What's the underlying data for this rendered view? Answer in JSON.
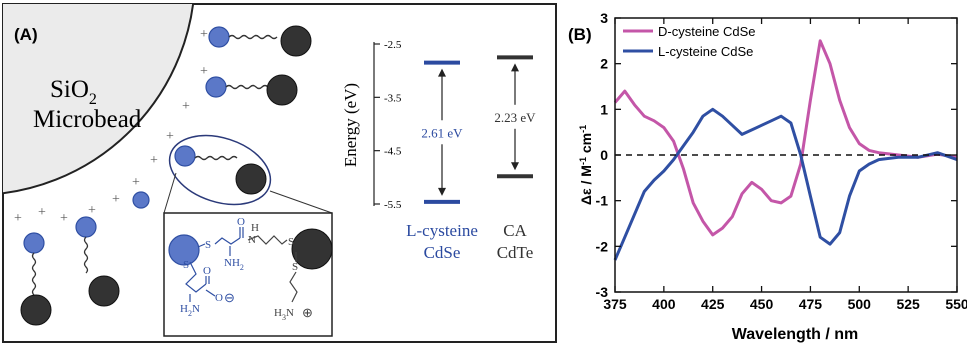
{
  "panel_a": {
    "label": "(A)",
    "bead_line1": "SiO",
    "bead_sub": "2",
    "bead_line2": "Microbead",
    "energy_axis": {
      "label": "Energy (eV)",
      "ticks": [
        "-2.5",
        "-3.5",
        "-4.5",
        "-5.5"
      ],
      "range": [
        -2.5,
        -5.5
      ]
    },
    "levels": [
      {
        "name_line1": "L-cysteine",
        "name_line2": "CdSe",
        "upper": -2.85,
        "lower": -5.46,
        "gap": "2.61 eV",
        "color": "#2b4aa0"
      },
      {
        "name_line1": "CA",
        "name_line2": "CdTe",
        "upper": -2.75,
        "lower": -4.98,
        "gap": "2.23 eV",
        "color": "#333333"
      }
    ],
    "structure": {
      "S1": "S",
      "S2": "S",
      "S3": "S",
      "NH": "H",
      "N": "N",
      "O1": "O",
      "NH2a": "NH",
      "NH2a_sub": "2",
      "H2N": "H",
      "H2N_sub": "2",
      "H2N_N": "N",
      "O2": "O",
      "O3": "O",
      "minus": "⊖",
      "H3N": "H",
      "H3N_sub": "3",
      "H3N_N": "N",
      "plus": "⊕"
    },
    "colors": {
      "blue_dot": "#5b78c8",
      "dark_dot": "#333333",
      "blue_text": "#2b4aa0",
      "bead_fill": "#ebebeb"
    }
  },
  "panel_b": {
    "label": "(B)",
    "chart_data": {
      "type": "line",
      "xlabel": "Wavelength / nm",
      "ylabel": "Δε / M⁻¹ cm⁻¹",
      "xlim": [
        375,
        550
      ],
      "ylim": [
        -3,
        3
      ],
      "xticks": [
        375,
        400,
        425,
        450,
        475,
        500,
        525,
        550
      ],
      "yticks": [
        3,
        2,
        1,
        0,
        -1,
        -2,
        -3
      ],
      "legend_position": "top-left",
      "series": [
        {
          "name": "D-cysteine CdSe",
          "color": "#c456a8",
          "x": [
            375,
            380,
            385,
            390,
            395,
            400,
            405,
            410,
            415,
            420,
            425,
            430,
            435,
            440,
            445,
            450,
            455,
            460,
            465,
            470,
            475,
            480,
            485,
            490,
            495,
            500,
            505,
            510,
            520,
            530,
            540,
            550
          ],
          "y": [
            1.15,
            1.4,
            1.1,
            0.85,
            0.75,
            0.6,
            0.3,
            -0.3,
            -1.05,
            -1.45,
            -1.75,
            -1.6,
            -1.35,
            -0.85,
            -0.6,
            -0.75,
            -1.0,
            -1.05,
            -0.9,
            -0.2,
            1.2,
            2.5,
            2.0,
            1.2,
            0.6,
            0.25,
            0.1,
            0.05,
            0.0,
            -0.05,
            0.02,
            -0.05
          ]
        },
        {
          "name": "L-cysteine CdSe",
          "color": "#2f4fa3",
          "x": [
            375,
            380,
            385,
            390,
            395,
            400,
            405,
            410,
            415,
            420,
            425,
            430,
            435,
            440,
            445,
            450,
            455,
            460,
            465,
            470,
            475,
            480,
            485,
            490,
            495,
            500,
            505,
            510,
            520,
            530,
            540,
            550
          ],
          "y": [
            -2.3,
            -1.8,
            -1.3,
            -0.8,
            -0.55,
            -0.35,
            -0.1,
            0.2,
            0.5,
            0.85,
            1.0,
            0.85,
            0.65,
            0.45,
            0.55,
            0.65,
            0.75,
            0.85,
            0.7,
            0.0,
            -0.9,
            -1.8,
            -1.95,
            -1.7,
            -0.9,
            -0.35,
            -0.2,
            -0.1,
            -0.05,
            -0.05,
            0.05,
            -0.1
          ]
        }
      ]
    }
  }
}
